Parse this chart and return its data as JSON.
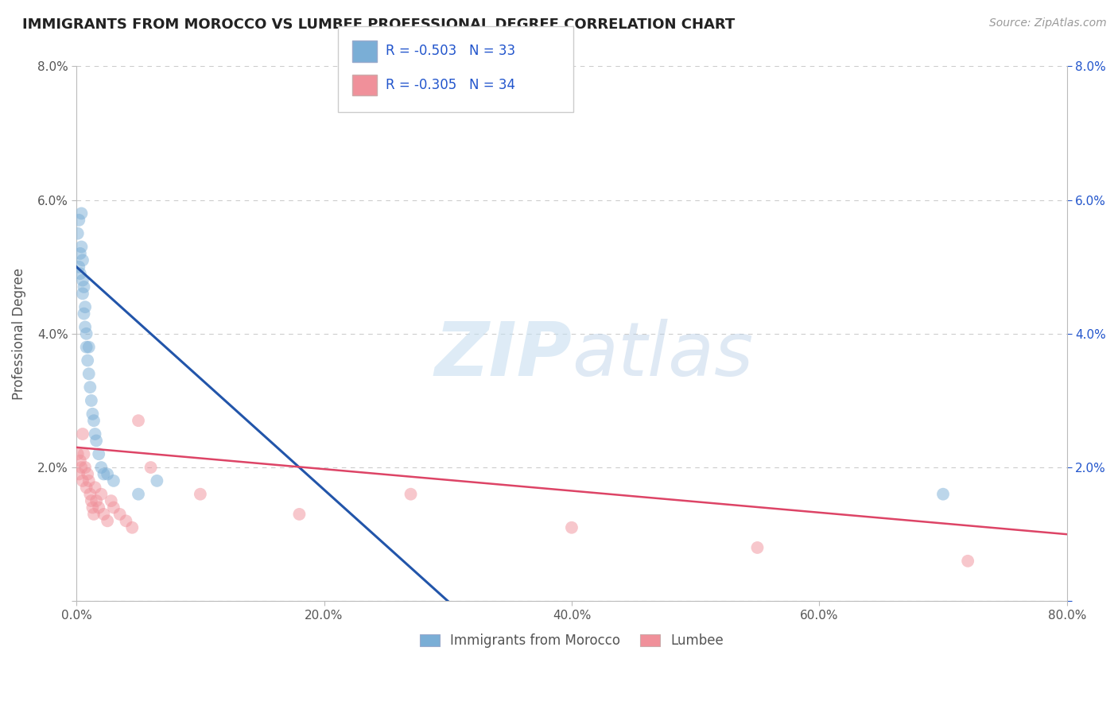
{
  "title": "IMMIGRANTS FROM MOROCCO VS LUMBEE PROFESSIONAL DEGREE CORRELATION CHART",
  "source": "Source: ZipAtlas.com",
  "ylabel": "Professional Degree",
  "xlim": [
    0,
    0.8
  ],
  "ylim": [
    0,
    0.08
  ],
  "xticks": [
    0.0,
    0.2,
    0.4,
    0.6,
    0.8
  ],
  "xticklabels": [
    "0.0%",
    "20.0%",
    "40.0%",
    "60.0%",
    "80.0%"
  ],
  "yticks": [
    0.0,
    0.02,
    0.04,
    0.06,
    0.08
  ],
  "yticklabels_left": [
    "",
    "2.0%",
    "4.0%",
    "6.0%",
    "8.0%"
  ],
  "yticklabels_right": [
    "",
    "2.0%",
    "4.0%",
    "6.0%",
    "8.0%"
  ],
  "blue_scatter_x": [
    0.001,
    0.002,
    0.002,
    0.003,
    0.003,
    0.004,
    0.004,
    0.005,
    0.005,
    0.005,
    0.006,
    0.006,
    0.007,
    0.007,
    0.008,
    0.008,
    0.009,
    0.01,
    0.01,
    0.011,
    0.012,
    0.013,
    0.014,
    0.015,
    0.016,
    0.018,
    0.02,
    0.022,
    0.025,
    0.03,
    0.05,
    0.065,
    0.7
  ],
  "blue_scatter_y": [
    0.055,
    0.05,
    0.057,
    0.052,
    0.049,
    0.058,
    0.053,
    0.048,
    0.051,
    0.046,
    0.047,
    0.043,
    0.044,
    0.041,
    0.04,
    0.038,
    0.036,
    0.034,
    0.038,
    0.032,
    0.03,
    0.028,
    0.027,
    0.025,
    0.024,
    0.022,
    0.02,
    0.019,
    0.019,
    0.018,
    0.016,
    0.018,
    0.016
  ],
  "pink_scatter_x": [
    0.001,
    0.002,
    0.003,
    0.004,
    0.005,
    0.005,
    0.006,
    0.007,
    0.008,
    0.009,
    0.01,
    0.011,
    0.012,
    0.013,
    0.014,
    0.015,
    0.016,
    0.018,
    0.02,
    0.022,
    0.025,
    0.028,
    0.03,
    0.035,
    0.04,
    0.045,
    0.05,
    0.06,
    0.1,
    0.18,
    0.27,
    0.4,
    0.55,
    0.72
  ],
  "pink_scatter_y": [
    0.022,
    0.019,
    0.021,
    0.02,
    0.025,
    0.018,
    0.022,
    0.02,
    0.017,
    0.019,
    0.018,
    0.016,
    0.015,
    0.014,
    0.013,
    0.017,
    0.015,
    0.014,
    0.016,
    0.013,
    0.012,
    0.015,
    0.014,
    0.013,
    0.012,
    0.011,
    0.027,
    0.02,
    0.016,
    0.013,
    0.016,
    0.011,
    0.008,
    0.006
  ],
  "blue_line_x": [
    0.0,
    0.3
  ],
  "blue_line_y": [
    0.05,
    0.0
  ],
  "pink_line_x": [
    0.0,
    0.8
  ],
  "pink_line_y": [
    0.023,
    0.01
  ],
  "blue_color": "#7aaed6",
  "pink_color": "#f0909a",
  "blue_line_color": "#2255aa",
  "pink_line_color": "#dd4466",
  "R_blue": "-0.503",
  "N_blue": "33",
  "R_pink": "-0.305",
  "N_pink": "34",
  "legend_label_blue": "Immigrants from Morocco",
  "legend_label_pink": "Lumbee",
  "watermark_zip": "ZIP",
  "watermark_atlas": "atlas",
  "background_color": "#ffffff",
  "grid_color": "#cccccc",
  "stat_color": "#2255cc"
}
